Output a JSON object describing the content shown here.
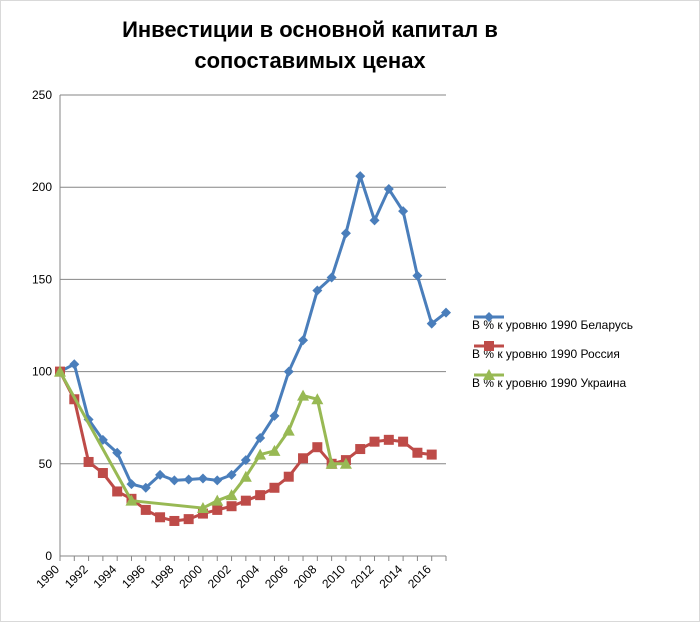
{
  "chart_data": {
    "type": "line",
    "title_line1": "Инвестиции в основной капитал в",
    "title_line2": "сопоставимых ценах",
    "ylim": [
      0,
      250
    ],
    "yticks": [
      "0",
      "50",
      "100",
      "150",
      "200",
      "250"
    ],
    "xlim": [
      1990,
      2016
    ],
    "xtick_labels": [
      "1990",
      "1992",
      "1994",
      "1996",
      "1998",
      "2000",
      "2002",
      "2004",
      "2006",
      "2008",
      "2010",
      "2012",
      "2014",
      "2016"
    ],
    "grid": true,
    "legend_position": "right",
    "series": [
      {
        "name": "В % к уровню 1990 Беларусь",
        "color": "#4a7ebb",
        "marker": "diamond",
        "x": [
          1990,
          1991,
          1992,
          1993,
          1994,
          1995,
          1996,
          1997,
          1998,
          1999,
          2000,
          2001,
          2002,
          2003,
          2004,
          2005,
          2006,
          2007,
          2008,
          2009,
          2010,
          2011,
          2012,
          2013,
          2014,
          2015,
          2016,
          2017
        ],
        "values": [
          100,
          104,
          74,
          63,
          56,
          39,
          37,
          44,
          41,
          41.5,
          42,
          41,
          44,
          52,
          64,
          76,
          100,
          117,
          144,
          151,
          175,
          206,
          182,
          199,
          187,
          152,
          126,
          132
        ]
      },
      {
        "name": "В % к уровню 1990 Россия",
        "color": "#be4b48",
        "marker": "square",
        "x": [
          1990,
          1991,
          1992,
          1993,
          1994,
          1995,
          1996,
          1997,
          1998,
          1999,
          2000,
          2001,
          2002,
          2003,
          2004,
          2005,
          2006,
          2007,
          2008,
          2009,
          2010,
          2011,
          2012,
          2013,
          2014,
          2015,
          2016
        ],
        "values": [
          100,
          85,
          51,
          45,
          35,
          31,
          25,
          21,
          19,
          20,
          23,
          25,
          27,
          30,
          33,
          37,
          43,
          53,
          59,
          50,
          52,
          58,
          62,
          63,
          62,
          56,
          55
        ]
      },
      {
        "name": "В % к уровню 1990 Украина",
        "color": "#98b954",
        "marker": "triangle",
        "x": [
          1990,
          1995,
          2000,
          2001,
          2002,
          2003,
          2004,
          2005,
          2006,
          2007,
          2008,
          2009,
          2010
        ],
        "values": [
          100,
          30,
          26,
          30,
          33,
          43,
          55,
          57,
          68,
          87,
          85,
          50,
          50
        ]
      }
    ]
  }
}
